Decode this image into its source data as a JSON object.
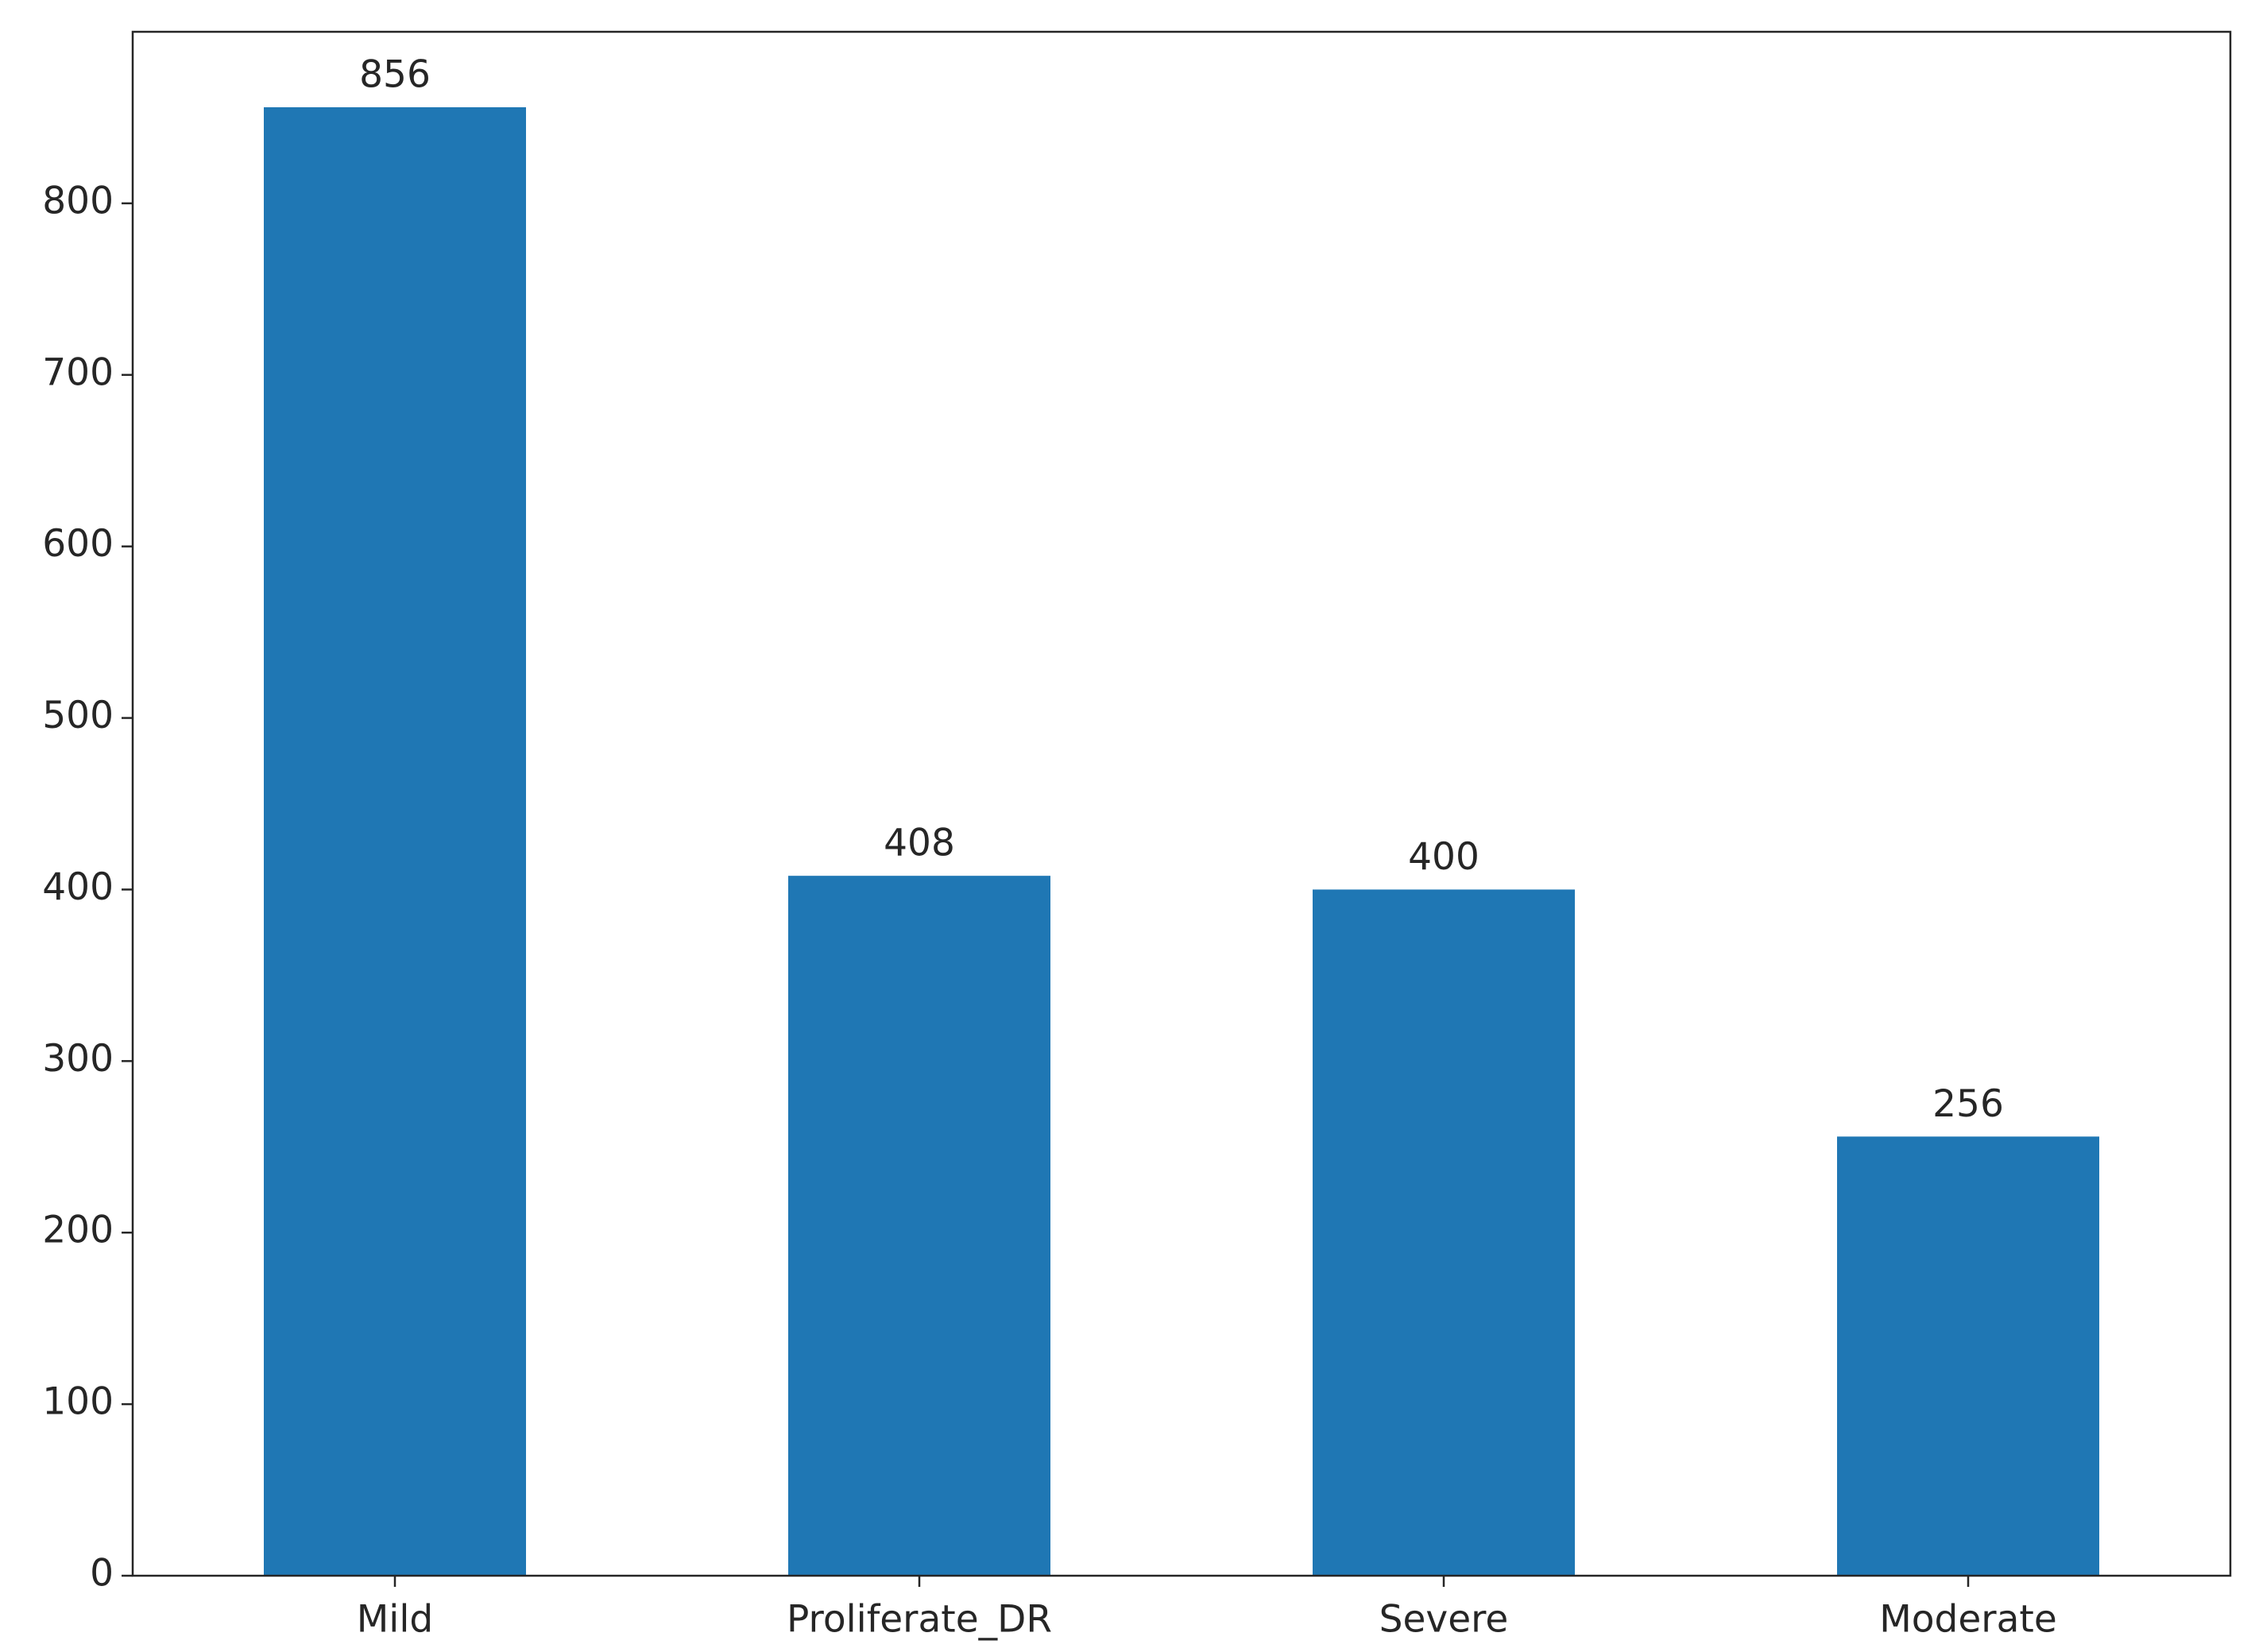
{
  "chart_data": {
    "type": "bar",
    "categories": [
      "Mild",
      "Proliferate_DR",
      "Severe",
      "Moderate"
    ],
    "values": [
      856,
      408,
      400,
      256
    ],
    "color": "#1f77b4",
    "ylim": [
      0,
      900
    ],
    "yticks": [
      0,
      100,
      200,
      300,
      400,
      500,
      600,
      700,
      800
    ],
    "grid": false
  }
}
